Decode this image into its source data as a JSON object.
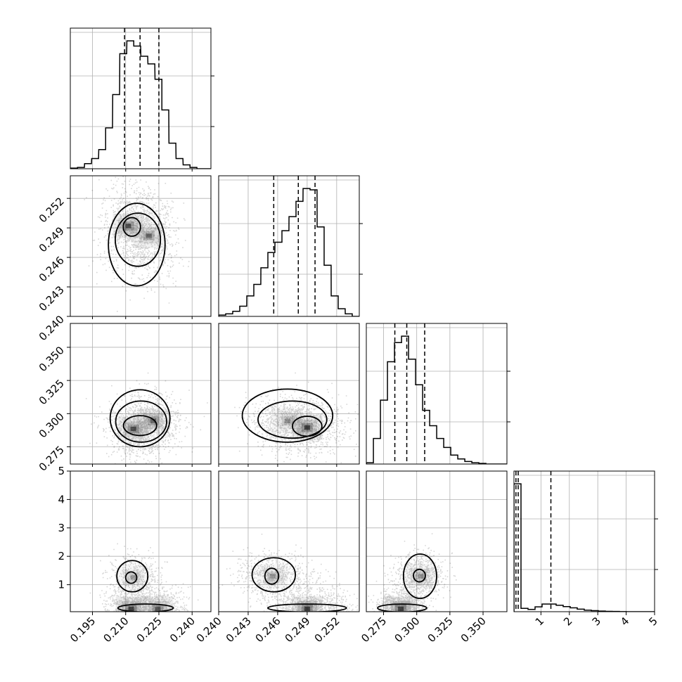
{
  "chart_data": {
    "type": "corner",
    "grid": true,
    "parameters": [
      {
        "index": 0,
        "range": [
          0.185,
          0.2485
        ],
        "ticks": [
          0.195,
          0.21,
          0.225,
          0.24
        ],
        "tick_labels": [
          "0.195",
          "0.210",
          "0.225",
          "0.240"
        ],
        "hist_x": [
          0.1867,
          0.1898,
          0.193,
          0.1962,
          0.1994,
          0.2025,
          0.2057,
          0.2089,
          0.2121,
          0.2152,
          0.2184,
          0.2216,
          0.2248,
          0.2279,
          0.2311,
          0.2343,
          0.2375,
          0.2406,
          0.2438,
          0.247
        ],
        "hist_y": [
          0.005,
          0.01,
          0.04,
          0.08,
          0.15,
          0.32,
          0.58,
          0.9,
          1.0,
          0.96,
          0.88,
          0.82,
          0.7,
          0.46,
          0.2,
          0.08,
          0.03,
          0.01,
          0.0,
          0.0
        ],
        "quantiles": [
          0.2095,
          0.2165,
          0.225
        ]
      },
      {
        "index": 1,
        "range": [
          0.24,
          0.2543
        ],
        "ticks": [
          0.24,
          0.243,
          0.246,
          0.249,
          0.252
        ],
        "tick_labels": [
          "0.240",
          "0.243",
          "0.246",
          "0.249",
          "0.252"
        ],
        "hist_x": [
          0.24036,
          0.24107,
          0.24179,
          0.2425,
          0.24322,
          0.24393,
          0.24465,
          0.24536,
          0.24608,
          0.24679,
          0.24751,
          0.24822,
          0.24894,
          0.24965,
          0.25037,
          0.25108,
          0.2518,
          0.25251,
          0.25323,
          0.25394
        ],
        "hist_y": [
          0.01,
          0.02,
          0.04,
          0.08,
          0.16,
          0.25,
          0.38,
          0.5,
          0.58,
          0.67,
          0.78,
          0.9,
          1.0,
          0.99,
          0.7,
          0.4,
          0.16,
          0.06,
          0.02,
          0.0
        ],
        "quantiles": [
          0.2456,
          0.2481,
          0.2498
        ]
      },
      {
        "index": 2,
        "range": [
          0.262,
          0.368
        ],
        "ticks": [
          0.275,
          0.3,
          0.325,
          0.35
        ],
        "tick_labels": [
          "0.275",
          "0.300",
          "0.325",
          "0.350"
        ],
        "hist_x": [
          0.2647,
          0.27,
          0.2753,
          0.2806,
          0.2859,
          0.2912,
          0.2965,
          0.3018,
          0.3071,
          0.3124,
          0.3177,
          0.323,
          0.3283,
          0.3336,
          0.3389,
          0.3442,
          0.3495,
          0.3548,
          0.3601,
          0.3654
        ],
        "hist_y": [
          0.01,
          0.2,
          0.5,
          0.8,
          0.95,
          1.0,
          0.82,
          0.62,
          0.42,
          0.3,
          0.2,
          0.13,
          0.07,
          0.04,
          0.02,
          0.01,
          0.005,
          0.0,
          0.0,
          0.0
        ],
        "quantiles": [
          0.2835,
          0.2925,
          0.306
        ]
      },
      {
        "index": 3,
        "range": [
          0.05,
          5.0
        ],
        "ticks": [
          1,
          2,
          3,
          4,
          5
        ],
        "tick_labels": [
          "1",
          "2",
          "3",
          "4",
          "5"
        ],
        "hist_x": [
          0.174,
          0.421,
          0.669,
          0.916,
          1.164,
          1.411,
          1.659,
          1.906,
          2.154,
          2.401,
          2.649,
          2.896,
          3.144,
          3.391,
          3.639,
          3.886,
          4.134,
          4.381,
          4.629,
          4.876
        ],
        "hist_y": [
          1.0,
          0.026,
          0.018,
          0.038,
          0.06,
          0.06,
          0.05,
          0.04,
          0.03,
          0.02,
          0.012,
          0.008,
          0.005,
          0.003,
          0.002,
          0.001,
          0.0,
          0.0,
          0.0,
          0.0
        ],
        "quantiles": [
          0.12,
          0.2,
          1.35
        ]
      }
    ],
    "panels_2d": [
      {
        "x": 0,
        "y": 1,
        "peaks": [
          {
            "x": 0.2112,
            "y": 0.2492,
            "w": 0.9
          },
          {
            "x": 0.2205,
            "y": 0.2482,
            "w": 0.7
          }
        ],
        "spread": [
          0.0075,
          0.0027
        ],
        "contours": [
          {
            "x": 0.2128,
            "y": 0.2491,
            "rx": 0.0039,
            "ry": 0.00095
          },
          {
            "x": 0.2155,
            "y": 0.2478,
            "rx": 0.0102,
            "ry": 0.0027
          },
          {
            "x": 0.215,
            "y": 0.2473,
            "rx": 0.0128,
            "ry": 0.0042
          }
        ]
      },
      {
        "x": 0,
        "y": 2,
        "peaks": [
          {
            "x": 0.2135,
            "y": 0.2885,
            "w": 0.9
          },
          {
            "x": 0.2225,
            "y": 0.2945,
            "w": 0.75
          }
        ],
        "spread": [
          0.0075,
          0.013
        ],
        "contours": [
          {
            "x": 0.2165,
            "y": 0.291,
            "rx": 0.0075,
            "ry": 0.0075
          },
          {
            "x": 0.217,
            "y": 0.294,
            "rx": 0.0115,
            "ry": 0.0155
          },
          {
            "x": 0.2165,
            "y": 0.2965,
            "rx": 0.0135,
            "ry": 0.0215
          }
        ]
      },
      {
        "x": 1,
        "y": 2,
        "peaks": [
          {
            "x": 0.249,
            "y": 0.2895,
            "w": 1.0
          },
          {
            "x": 0.247,
            "y": 0.2945,
            "w": 0.5
          }
        ],
        "spread": [
          0.0024,
          0.012
        ],
        "contours": [
          {
            "x": 0.249,
            "y": 0.2905,
            "rx": 0.0015,
            "ry": 0.0075
          },
          {
            "x": 0.2475,
            "y": 0.2955,
            "rx": 0.0035,
            "ry": 0.014
          },
          {
            "x": 0.247,
            "y": 0.2985,
            "rx": 0.0046,
            "ry": 0.02
          }
        ]
      },
      {
        "x": 0,
        "y": 3,
        "peaks": [
          {
            "x": 0.2125,
            "y": 0.15,
            "w": 1.0
          },
          {
            "x": 0.2245,
            "y": 0.15,
            "w": 0.8
          },
          {
            "x": 0.2135,
            "y": 1.25,
            "w": 0.4
          }
        ],
        "spread": [
          0.007,
          0.45
        ],
        "contours": [
          {
            "x": 0.2125,
            "y": 1.25,
            "rx": 0.0025,
            "ry": 0.2
          },
          {
            "x": 0.213,
            "y": 1.3,
            "rx": 0.007,
            "ry": 0.55
          },
          {
            "x": 0.219,
            "y": 0.18,
            "rx": 0.0125,
            "ry": 0.14
          }
        ]
      },
      {
        "x": 1,
        "y": 3,
        "peaks": [
          {
            "x": 0.249,
            "y": 0.15,
            "w": 1.0
          },
          {
            "x": 0.2455,
            "y": 1.3,
            "w": 0.45
          }
        ],
        "spread": [
          0.0024,
          0.45
        ],
        "contours": [
          {
            "x": 0.2454,
            "y": 1.3,
            "rx": 0.0007,
            "ry": 0.28
          },
          {
            "x": 0.2456,
            "y": 1.35,
            "rx": 0.0022,
            "ry": 0.6
          },
          {
            "x": 0.249,
            "y": 0.18,
            "rx": 0.004,
            "ry": 0.14
          }
        ]
      },
      {
        "x": 2,
        "y": 3,
        "peaks": [
          {
            "x": 0.288,
            "y": 0.15,
            "w": 1.0
          },
          {
            "x": 0.303,
            "y": 1.3,
            "w": 0.45
          }
        ],
        "spread": [
          0.011,
          0.45
        ],
        "contours": [
          {
            "x": 0.302,
            "y": 1.32,
            "rx": 0.0045,
            "ry": 0.22
          },
          {
            "x": 0.3025,
            "y": 1.3,
            "rx": 0.0125,
            "ry": 0.78
          },
          {
            "x": 0.289,
            "y": 0.18,
            "rx": 0.0185,
            "ry": 0.14
          }
        ]
      }
    ]
  }
}
